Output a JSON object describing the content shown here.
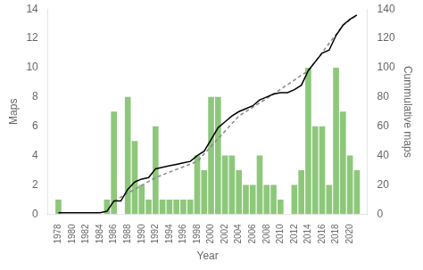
{
  "chart_data": {
    "type": "bar",
    "xlabel": "Year",
    "ylabel": "Maps",
    "y2label": "Cummulative maps",
    "series": [
      {
        "type": "bar",
        "color": "#8dc87a",
        "x": [
          1978,
          1979,
          1980,
          1981,
          1982,
          1983,
          1984,
          1985,
          1986,
          1987,
          1988,
          1989,
          1990,
          1991,
          1992,
          1993,
          1994,
          1995,
          1996,
          1997,
          1998,
          1999,
          2000,
          2001,
          2002,
          2003,
          2004,
          2005,
          2006,
          2007,
          2008,
          2009,
          2010,
          2011,
          2012,
          2013,
          2014,
          2015,
          2016,
          2017,
          2018,
          2019,
          2020,
          2021
        ],
        "values": [
          1,
          0,
          0,
          0,
          0,
          0,
          0,
          1,
          7,
          0,
          8,
          5,
          2,
          1,
          6,
          1,
          1,
          1,
          1,
          1,
          4,
          3,
          8,
          8,
          4,
          4,
          3,
          2,
          2,
          4,
          2,
          2,
          1,
          0,
          2,
          3,
          10,
          6,
          6,
          2,
          10,
          7,
          4,
          3
        ]
      },
      {
        "type": "line",
        "color": "#000000",
        "line_style": "solid",
        "axis": "y2",
        "x": [
          1978,
          1979,
          1980,
          1981,
          1982,
          1983,
          1984,
          1985,
          1986,
          1987,
          1988,
          1989,
          1990,
          1991,
          1992,
          1993,
          1994,
          1995,
          1996,
          1997,
          1998,
          1999,
          2000,
          2001,
          2002,
          2003,
          2004,
          2005,
          2006,
          2007,
          2008,
          2009,
          2010,
          2011,
          2012,
          2013,
          2014,
          2015,
          2016,
          2017,
          2018,
          2019,
          2020,
          2021
        ],
        "values": [
          1,
          1,
          1,
          1,
          1,
          1,
          1,
          2,
          9,
          9,
          17,
          22,
          24,
          25,
          31,
          32,
          33,
          34,
          35,
          36,
          40,
          43,
          51,
          59,
          63,
          67,
          70,
          72,
          74,
          78,
          80,
          82,
          83,
          83,
          85,
          88,
          98,
          104,
          110,
          112,
          122,
          129,
          133,
          136
        ]
      },
      {
        "type": "line",
        "color": "#888888",
        "line_style": "dashed",
        "axis": "y2",
        "x": [
          1986,
          1992,
          1998,
          2004,
          2009,
          2014,
          2019,
          2021
        ],
        "values": [
          9,
          25,
          36,
          67,
          82,
          98,
          129,
          136
        ]
      }
    ],
    "xlim": [
      1976.5,
      2022.5
    ],
    "xticks": [
      1978,
      1980,
      1982,
      1984,
      1986,
      1988,
      1990,
      1992,
      1994,
      1996,
      1998,
      2000,
      2002,
      2004,
      2006,
      2008,
      2010,
      2012,
      2014,
      2016,
      2018,
      2020
    ],
    "ylim": [
      0,
      14
    ],
    "yticks": [
      0,
      2,
      4,
      6,
      8,
      10,
      12,
      14
    ],
    "y2lim": [
      0,
      140
    ],
    "y2ticks": [
      0,
      20,
      40,
      60,
      80,
      100,
      120,
      140
    ],
    "grid": false
  }
}
